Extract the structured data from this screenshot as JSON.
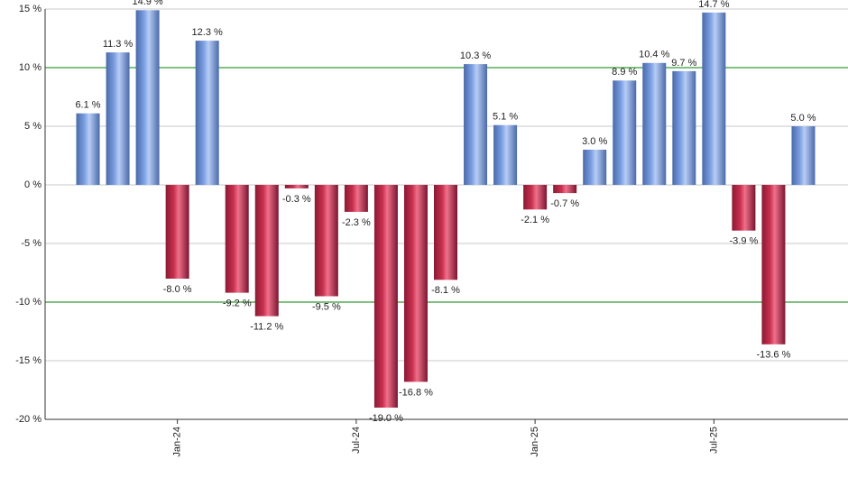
{
  "chart_data": {
    "type": "bar",
    "categories": [
      null,
      null,
      null,
      "Jan-24",
      null,
      null,
      null,
      null,
      null,
      "Jul-24",
      null,
      null,
      null,
      null,
      null,
      "Jan-25",
      null,
      null,
      null,
      null,
      null,
      "Jul-25",
      null,
      null,
      null
    ],
    "values": [
      6.1,
      11.3,
      14.9,
      -8.0,
      12.3,
      -9.2,
      -11.2,
      -0.3,
      -9.5,
      -2.3,
      -19.0,
      -16.8,
      -8.1,
      10.3,
      5.1,
      -2.1,
      -0.7,
      3.0,
      8.9,
      10.4,
      9.7,
      14.7,
      -3.9,
      -13.6,
      5.0
    ],
    "value_labels": [
      "6.1 %",
      "11.3 %",
      "14.9 %",
      "-8.0 %",
      "12.3 %",
      "-9.2 %",
      "-11.2 %",
      "-0.3 %",
      "-9.5 %",
      "-2.3 %",
      "-19.0 %",
      "-16.8 %",
      "-8.1 %",
      "10.3 %",
      "5.1 %",
      "-2.1 %",
      "-0.7 %",
      "3.0 %",
      "8.9 %",
      "10.4 %",
      "9.7 %",
      "14.7 %",
      "-3.9 %",
      "-13.6 %",
      "5.0 %"
    ],
    "positive_color": "#7b9fe3",
    "negative_color": "#c8304f",
    "ylim": [
      -20,
      15
    ],
    "yticks": [
      {
        "value": -20,
        "label": "-20 %"
      },
      {
        "value": -15,
        "label": "-15 %"
      },
      {
        "value": -10,
        "label": "-10 %"
      },
      {
        "value": -5,
        "label": "-5 %"
      },
      {
        "value": 0,
        "label": "0 %"
      },
      {
        "value": 5,
        "label": "5 %"
      },
      {
        "value": 10,
        "label": "10 %"
      },
      {
        "value": 15,
        "label": "15 %"
      }
    ],
    "grid": true,
    "reference_lines": [
      10,
      -10
    ],
    "reference_color": "#008000"
  }
}
